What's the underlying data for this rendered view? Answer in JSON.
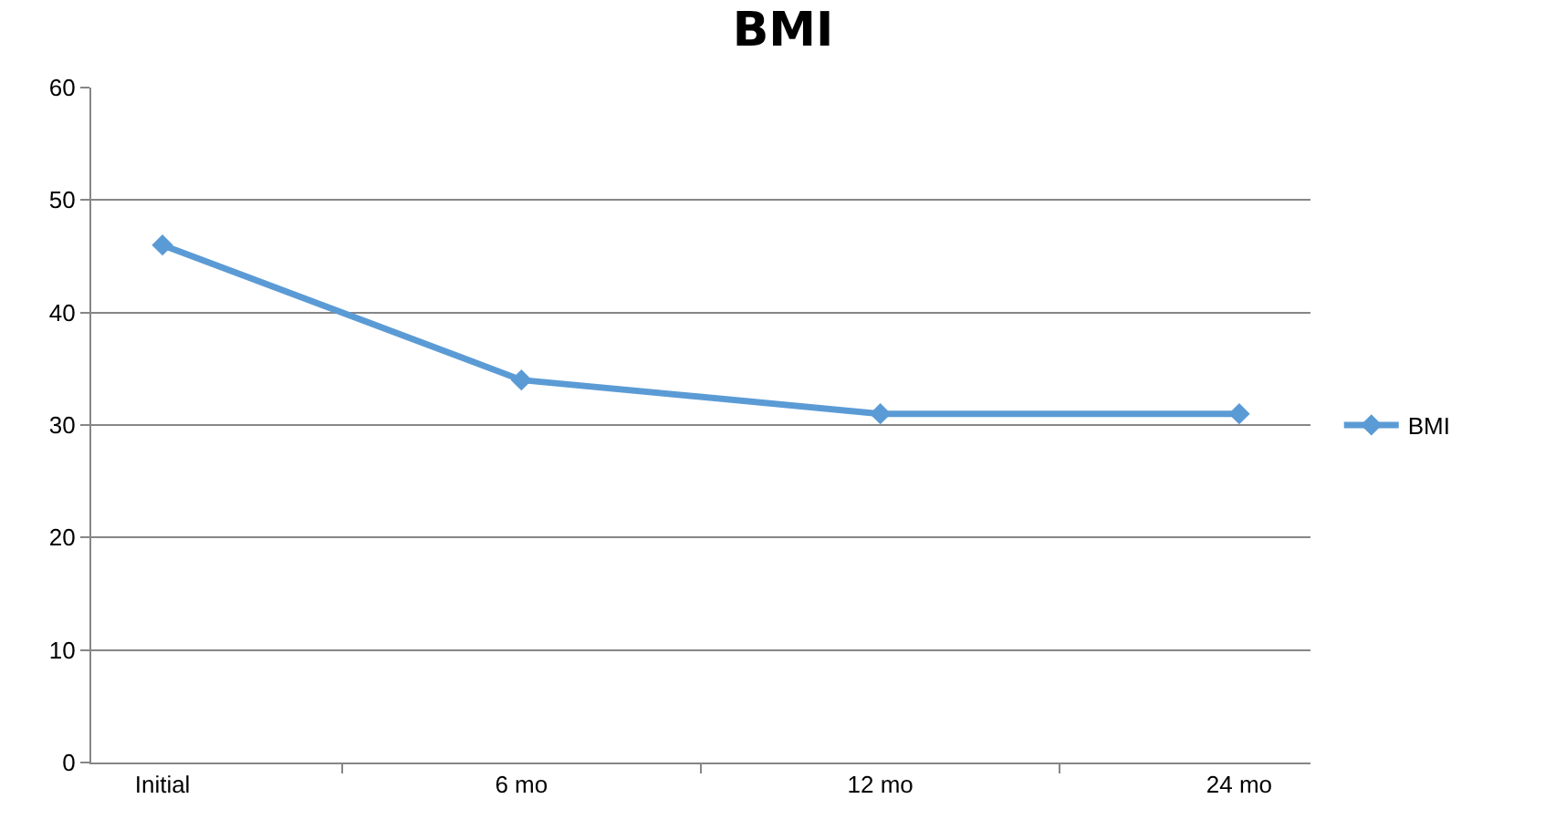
{
  "chart_data": {
    "type": "line",
    "title": "BMI",
    "categories": [
      "Initial",
      "6 mo",
      "12 mo",
      "24 mo"
    ],
    "series": [
      {
        "name": "BMI",
        "color": "#5b9bd5",
        "values": [
          46,
          34,
          31,
          31
        ]
      }
    ],
    "ylim": [
      0,
      60
    ],
    "yticks": [
      0,
      10,
      20,
      30,
      40,
      50,
      60
    ],
    "grid": "y",
    "legend": "right",
    "marker": "diamond",
    "line_style": "solid"
  }
}
